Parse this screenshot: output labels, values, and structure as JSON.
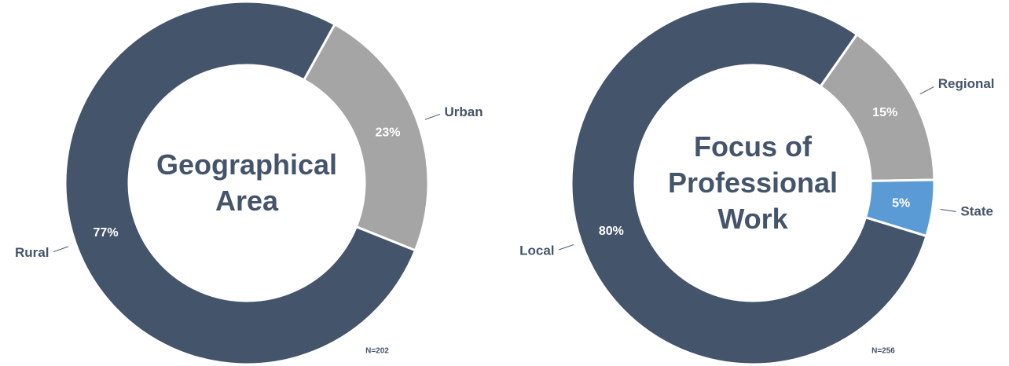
{
  "chart_data": [
    {
      "type": "donut",
      "title": "Geographical Area",
      "categories": [
        "Urban",
        "Rural"
      ],
      "values": [
        23,
        77
      ],
      "value_labels": [
        "23%",
        "77%"
      ],
      "colors": [
        "#a5a5a5",
        "#44546a"
      ],
      "annotation": "N=202"
    },
    {
      "type": "donut",
      "title": "Focus of Professional Work",
      "categories": [
        "Regional",
        "State",
        "Local"
      ],
      "values": [
        15,
        5,
        80
      ],
      "value_labels": [
        "15%",
        "5%",
        "80%"
      ],
      "colors": [
        "#a5a5a5",
        "#5b9bd5",
        "#44546a"
      ],
      "annotation": "N=256"
    }
  ]
}
